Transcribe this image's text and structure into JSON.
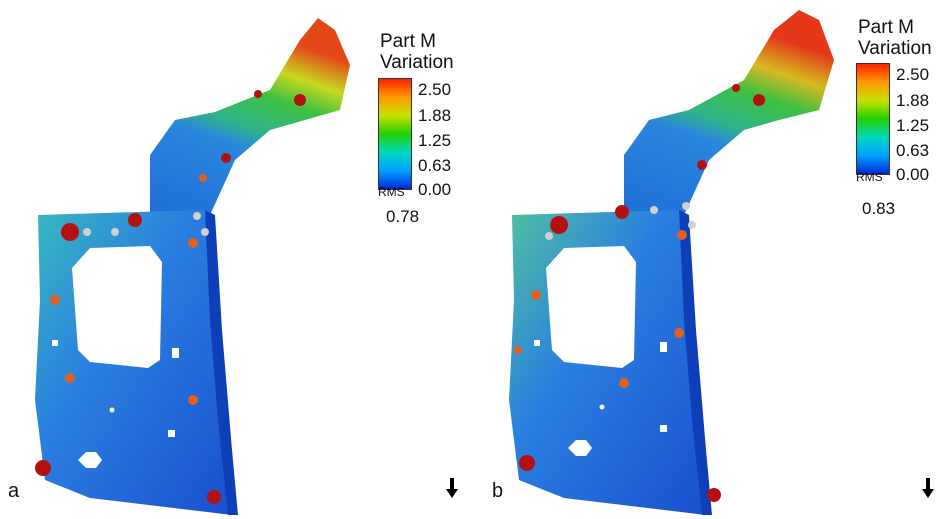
{
  "panels": [
    {
      "id": "a",
      "label": "a",
      "legend_title_1": "Part M",
      "legend_title_2": "Variation",
      "ticks": [
        "2.50",
        "1.88",
        "1.25",
        "0.63",
        "0.00"
      ],
      "rms_label": "RMS",
      "rms_value": "0.78"
    },
    {
      "id": "b",
      "label": "b",
      "legend_title_1": "Part M",
      "legend_title_2": "Variation",
      "ticks": [
        "2.50",
        "1.88",
        "1.25",
        "0.63",
        "0.00"
      ],
      "rms_label": "RMS",
      "rms_value": "0.83"
    }
  ],
  "colorscale": [
    "#ff2200",
    "#ff9900",
    "#c8e000",
    "#22d000",
    "#00d8c0",
    "#00a0ff",
    "#0028d8"
  ],
  "icons": {
    "direction_indicator": "down-arrow-icon"
  }
}
